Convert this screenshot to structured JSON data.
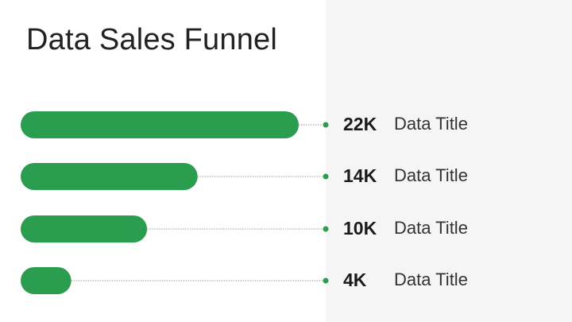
{
  "title": "Data Sales Funnel",
  "colors": {
    "bar": "#2a9d4e",
    "dot": "#2a9d4e",
    "leader": "#9a9a9a",
    "panel": "#f5f5f5"
  },
  "chart_data": {
    "type": "bar",
    "orientation": "horizontal",
    "categories": [
      "Data Title",
      "Data Title",
      "Data Title",
      "Data Title"
    ],
    "values": [
      22,
      14,
      10,
      4
    ],
    "value_labels": [
      "22K",
      "14K",
      "10K",
      "4K"
    ],
    "unit": "K",
    "title": "Data Sales Funnel",
    "xlabel": "",
    "ylabel": "",
    "grid": false,
    "legend": "none"
  }
}
